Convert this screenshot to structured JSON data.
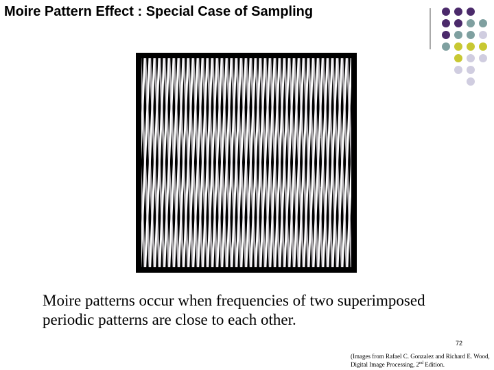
{
  "title": "Moire Pattern Effect : Special Case of Sampling",
  "body": "Moire patterns occur when frequencies of  two superimposed periodic patterns are close to each other.",
  "page_number": "72",
  "citation": {
    "text": "(Images from Rafael C. Gonzalez and Richard E. Wood, Digital Image Processing, 2",
    "superscript": "nd",
    "tail": " Edition."
  }
}
